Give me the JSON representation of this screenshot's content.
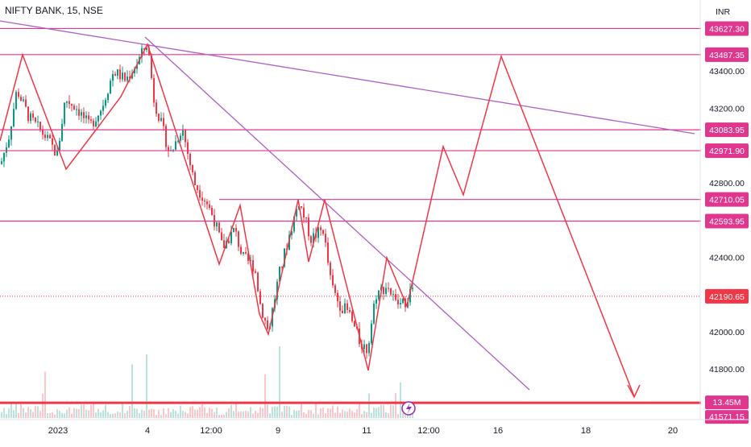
{
  "chart_data": {
    "type": "candlestick",
    "title": "NIFTY BANK, 15, NSE",
    "currency": "INR",
    "y_range": [
      41520,
      43720
    ],
    "price_ticks": [
      "43400.00",
      "43200.00",
      "42800.00",
      "42400.00",
      "42000.00",
      "41800.00"
    ],
    "time_ticks": [
      "2023",
      "4",
      "12:00",
      "9",
      "11",
      "12:00",
      "16",
      "18",
      "20"
    ],
    "current_price": {
      "value": 42190.65,
      "label": "42190.65",
      "color": "#f23645"
    },
    "levels": [
      {
        "value": 43627.3,
        "label": "43627.30"
      },
      {
        "value": 43487.35,
        "label": "43487.35"
      },
      {
        "value": 43083.95,
        "label": "43083.95"
      },
      {
        "value": 42971.9,
        "label": "42971.90"
      },
      {
        "value": 42710.05,
        "label": "42710.05"
      },
      {
        "value": 42593.95,
        "label": "42593.95"
      }
    ],
    "volume_level": {
      "value": 41571.15,
      "label": "41571.15",
      "color": "#f23645"
    },
    "volume_badge": "13.45M",
    "colors": {
      "up": "#089981",
      "down": "#f23645",
      "level": "#e0368e",
      "trend": "#b05cc6",
      "pattern": "#f23645"
    }
  }
}
